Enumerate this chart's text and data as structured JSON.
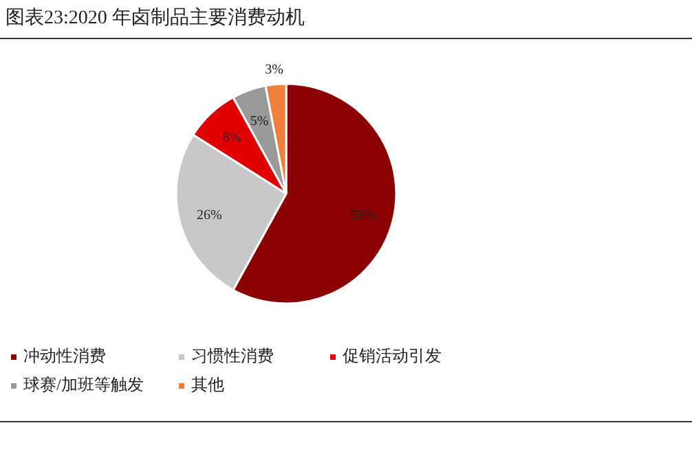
{
  "chart_data": {
    "type": "pie",
    "title": "图表23:2020 年卤制品主要消费动机",
    "categories": [
      "冲动性消费",
      "习惯性消费",
      "促销活动引发",
      "球赛/加班等触发",
      "其他"
    ],
    "values": [
      58,
      26,
      8,
      5,
      3
    ],
    "colors": [
      "#8b0000",
      "#c8c8c8",
      "#e00000",
      "#999999",
      "#f07f3c"
    ],
    "value_labels": [
      "58%",
      "26%",
      "8%",
      "5%",
      "3%"
    ],
    "legend": "bottom"
  }
}
